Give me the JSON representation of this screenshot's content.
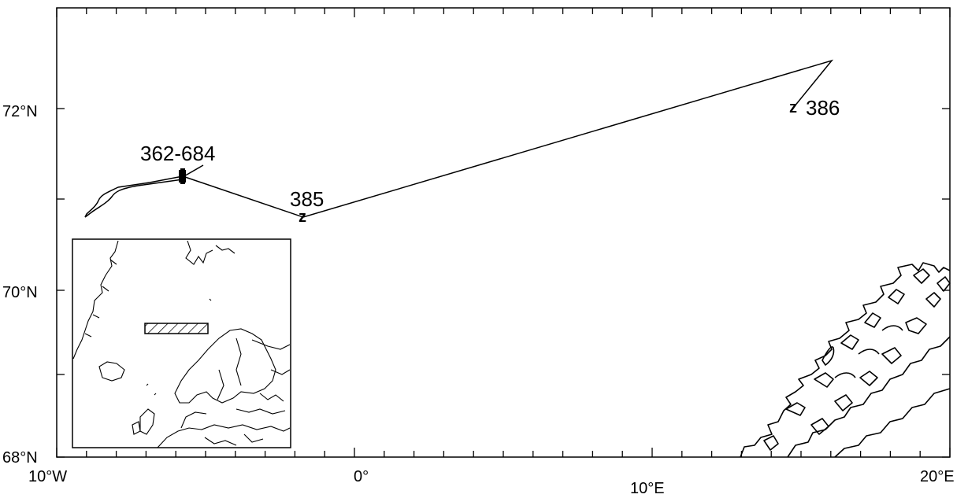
{
  "map": {
    "latitude_labels": [
      {
        "value": 72,
        "text": "72°N"
      },
      {
        "value": 70,
        "text": "70°N"
      },
      {
        "value": 68,
        "text": "68°N"
      }
    ],
    "longitude_labels": [
      {
        "value": -10,
        "text": "10°W"
      },
      {
        "value": 0,
        "text": "0°"
      },
      {
        "value": 10,
        "text": "10°E"
      },
      {
        "value": 20,
        "text": "20°E"
      }
    ],
    "stations": [
      {
        "id": "362-684",
        "label": "362-684"
      },
      {
        "id": "385",
        "label": "385",
        "marker": "z"
      },
      {
        "id": "386",
        "label": "386",
        "marker": "z"
      }
    ],
    "inset": {
      "description_marker": "hatched study area box"
    },
    "colors": {
      "line": "#000000",
      "background": "#ffffff"
    }
  }
}
